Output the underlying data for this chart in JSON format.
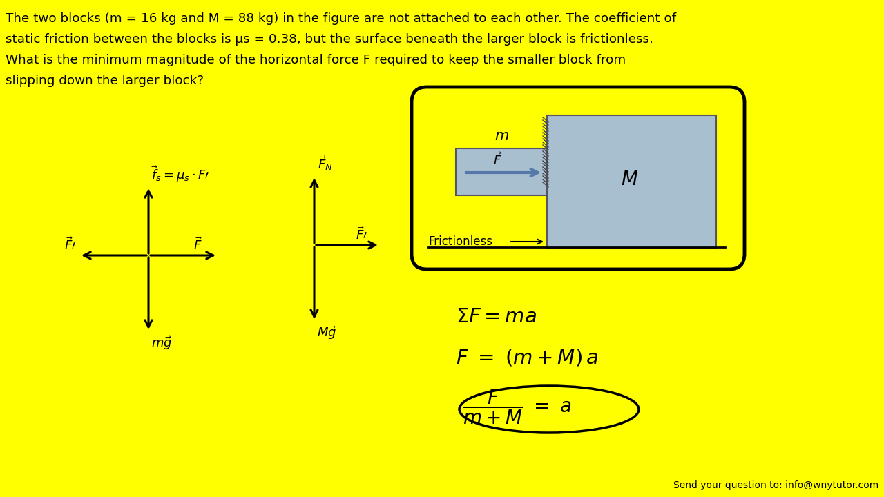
{
  "bg_color": "#FFFF00",
  "text_color": "#000000",
  "footer": "Send your question to: info@wnytutor.com",
  "fig_width": 12.8,
  "fig_height": 7.2,
  "title_line1": "The two blocks (m = 16 kg and M = 88 kg) in the figure are not attached to each other. The coefficient of",
  "title_line2": "static friction between the blocks is μs = 0.38, but the surface beneath the larger block is frictionless.",
  "title_line3": "What is the minimum magnitude of the horizontal force F required to keep the smaller block from",
  "title_line4": "slipping down the larger block?",
  "block_color": "#a8bfd0",
  "block_edge": "#555566"
}
